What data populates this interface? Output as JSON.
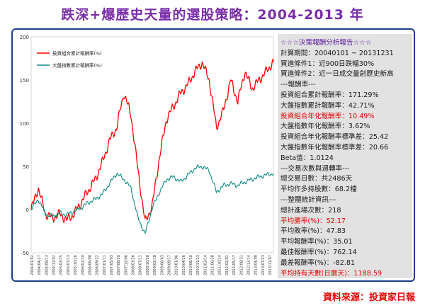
{
  "title": "跌深+爆歷史天量的選股策略：2004-2013 年",
  "footer": "資料來源：投資家日報",
  "colors": {
    "portfolio": "#ff0000",
    "index": "#0b8a84",
    "title": "#7a2ea8",
    "frame": "#1f3d8c",
    "highlight": "#e60000"
  },
  "panel": {
    "rows": [
      {
        "text": "☆☆☆決策報酬分析報告☆☆☆",
        "style": "hdr"
      },
      {
        "text": "計算期間：20040101 ~ 20131231",
        "style": "normal"
      },
      {
        "text": "買進條件1：近900日跌幅30%",
        "style": "normal"
      },
      {
        "text": "買進條件2：近一日成交量創歷史新高",
        "style": "normal"
      },
      {
        "text": "---報酬率---",
        "style": "normal"
      },
      {
        "text": "投資組合累計報酬率：171.29%",
        "style": "normal"
      },
      {
        "text": "大盤指數累計報酬率：42.71%",
        "style": "normal"
      },
      {
        "text": "投資組合年化報酬率：10.49%",
        "style": "red"
      },
      {
        "text": "大盤指數年化報酬率：3.62%",
        "style": "normal"
      },
      {
        "text": "投資組合年化報酬率標準差：25.42",
        "style": "normal"
      },
      {
        "text": "大盤指數年化報酬率標準差：20.66",
        "style": "normal"
      },
      {
        "text": "Beta值：1.0124",
        "style": "normal"
      },
      {
        "text": "---交易次數與週轉率---",
        "style": "normal"
      },
      {
        "text": "總交易日數：共2486天",
        "style": "normal"
      },
      {
        "text": "平均作多持股數：68.2檔",
        "style": "normal"
      },
      {
        "text": "---整體統計資訊---",
        "style": "normal"
      },
      {
        "text": "總計進場次數：218",
        "style": "normal"
      },
      {
        "text": "平均勝率(%)：52.17",
        "style": "red"
      },
      {
        "text": "平均敗率(%)：47.83",
        "style": "normal"
      },
      {
        "text": "平均報酬率(%)：35.01",
        "style": "normal"
      },
      {
        "text": "最佳報酬率(%)：762.14",
        "style": "normal"
      },
      {
        "text": "最差報酬率(%)：-82.81",
        "style": "normal"
      },
      {
        "text": "平均持有天數(日曆天)：1188.59",
        "style": "red"
      }
    ]
  },
  "chart_data": {
    "type": "line",
    "ylim": [
      -50,
      200
    ],
    "yticks": [
      -50,
      0,
      50,
      100,
      150,
      200
    ],
    "grid": false,
    "legend_position": "top-left",
    "x_tick_labels": [
      "2004/01/02",
      "2004/04/27",
      "2004/08/13",
      "2004/12/02",
      "2005/03/25",
      "2005/07/13",
      "2005/10/26",
      "2006/02/20",
      "2006/06/08",
      "2006/09/22",
      "2007/01/11",
      "2007/05/03",
      "2007/08/20",
      "2007/12/06",
      "2008/03/26",
      "2008/07/11",
      "2008/10/28",
      "2009/02/18",
      "2009/06/03",
      "2009/09/17",
      "2010/01/06",
      "2010/04/26",
      "2010/08/10",
      "2010/11/23",
      "2011/03/14",
      "2011/06/28",
      "2011/10/14",
      "2012/02/01",
      "2012/05/17",
      "2012/08/31",
      "2012/12/14",
      "2013/04/08",
      "2013/07/23",
      "2013/11/07"
    ],
    "x": [
      "2004-01",
      "2004-04",
      "2004-08",
      "2004-12",
      "2005-03",
      "2005-07",
      "2005-10",
      "2006-02",
      "2006-06",
      "2006-09",
      "2007-01",
      "2007-05",
      "2007-08",
      "2007-12",
      "2008-03",
      "2008-07",
      "2008-10",
      "2009-02",
      "2009-06",
      "2009-09",
      "2010-01",
      "2010-04",
      "2010-08",
      "2010-11",
      "2011-03",
      "2011-06",
      "2011-10",
      "2012-02",
      "2012-05",
      "2012-08",
      "2012-12",
      "2013-04",
      "2013-07",
      "2013-11",
      "2013-12"
    ],
    "series": [
      {
        "name": "投資組合累計報酬率(%)",
        "color": "#ff0000",
        "values": [
          0,
          25,
          -5,
          -10,
          -5,
          -12,
          -5,
          8,
          22,
          35,
          55,
          80,
          95,
          135,
          110,
          45,
          -15,
          5,
          60,
          105,
          120,
          135,
          145,
          160,
          170,
          150,
          95,
          115,
          150,
          125,
          160,
          140,
          150,
          160,
          171
        ]
      },
      {
        "name": "大盤指數累計報酬率(%)",
        "color": "#0b8a84",
        "values": [
          0,
          12,
          -5,
          -8,
          -4,
          -6,
          -2,
          2,
          8,
          12,
          18,
          30,
          42,
          35,
          25,
          -10,
          -28,
          2,
          20,
          35,
          38,
          32,
          40,
          48,
          50,
          45,
          20,
          28,
          30,
          28,
          32,
          35,
          38,
          40,
          42
        ]
      }
    ]
  }
}
